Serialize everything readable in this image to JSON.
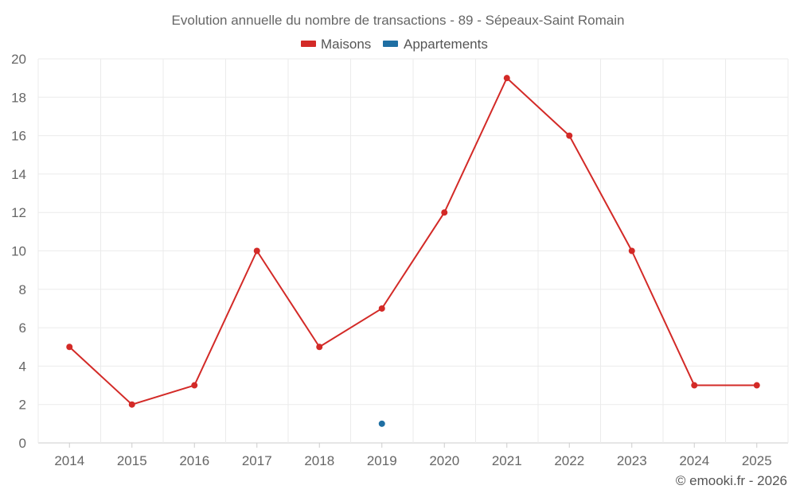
{
  "chart_data": {
    "type": "line",
    "title": "Evolution annuelle du nombre de transactions - 89 - Sépeaux-Saint Romain",
    "categories": [
      "2014",
      "2015",
      "2016",
      "2017",
      "2018",
      "2019",
      "2020",
      "2021",
      "2022",
      "2023",
      "2024",
      "2025"
    ],
    "ylim": [
      0,
      20
    ],
    "yticks": [
      0,
      2,
      4,
      6,
      8,
      10,
      12,
      14,
      16,
      18,
      20
    ],
    "grid": true,
    "legend_position": "top",
    "series": [
      {
        "name": "Maisons",
        "color": "#d32a27",
        "values": [
          5,
          2,
          3,
          10,
          5,
          7,
          12,
          19,
          16,
          10,
          3,
          3
        ]
      },
      {
        "name": "Appartements",
        "color": "#1f6fa3",
        "values": [
          null,
          null,
          null,
          null,
          null,
          1,
          null,
          null,
          null,
          null,
          null,
          null
        ]
      }
    ],
    "credit": "© emooki.fr - 2026"
  }
}
